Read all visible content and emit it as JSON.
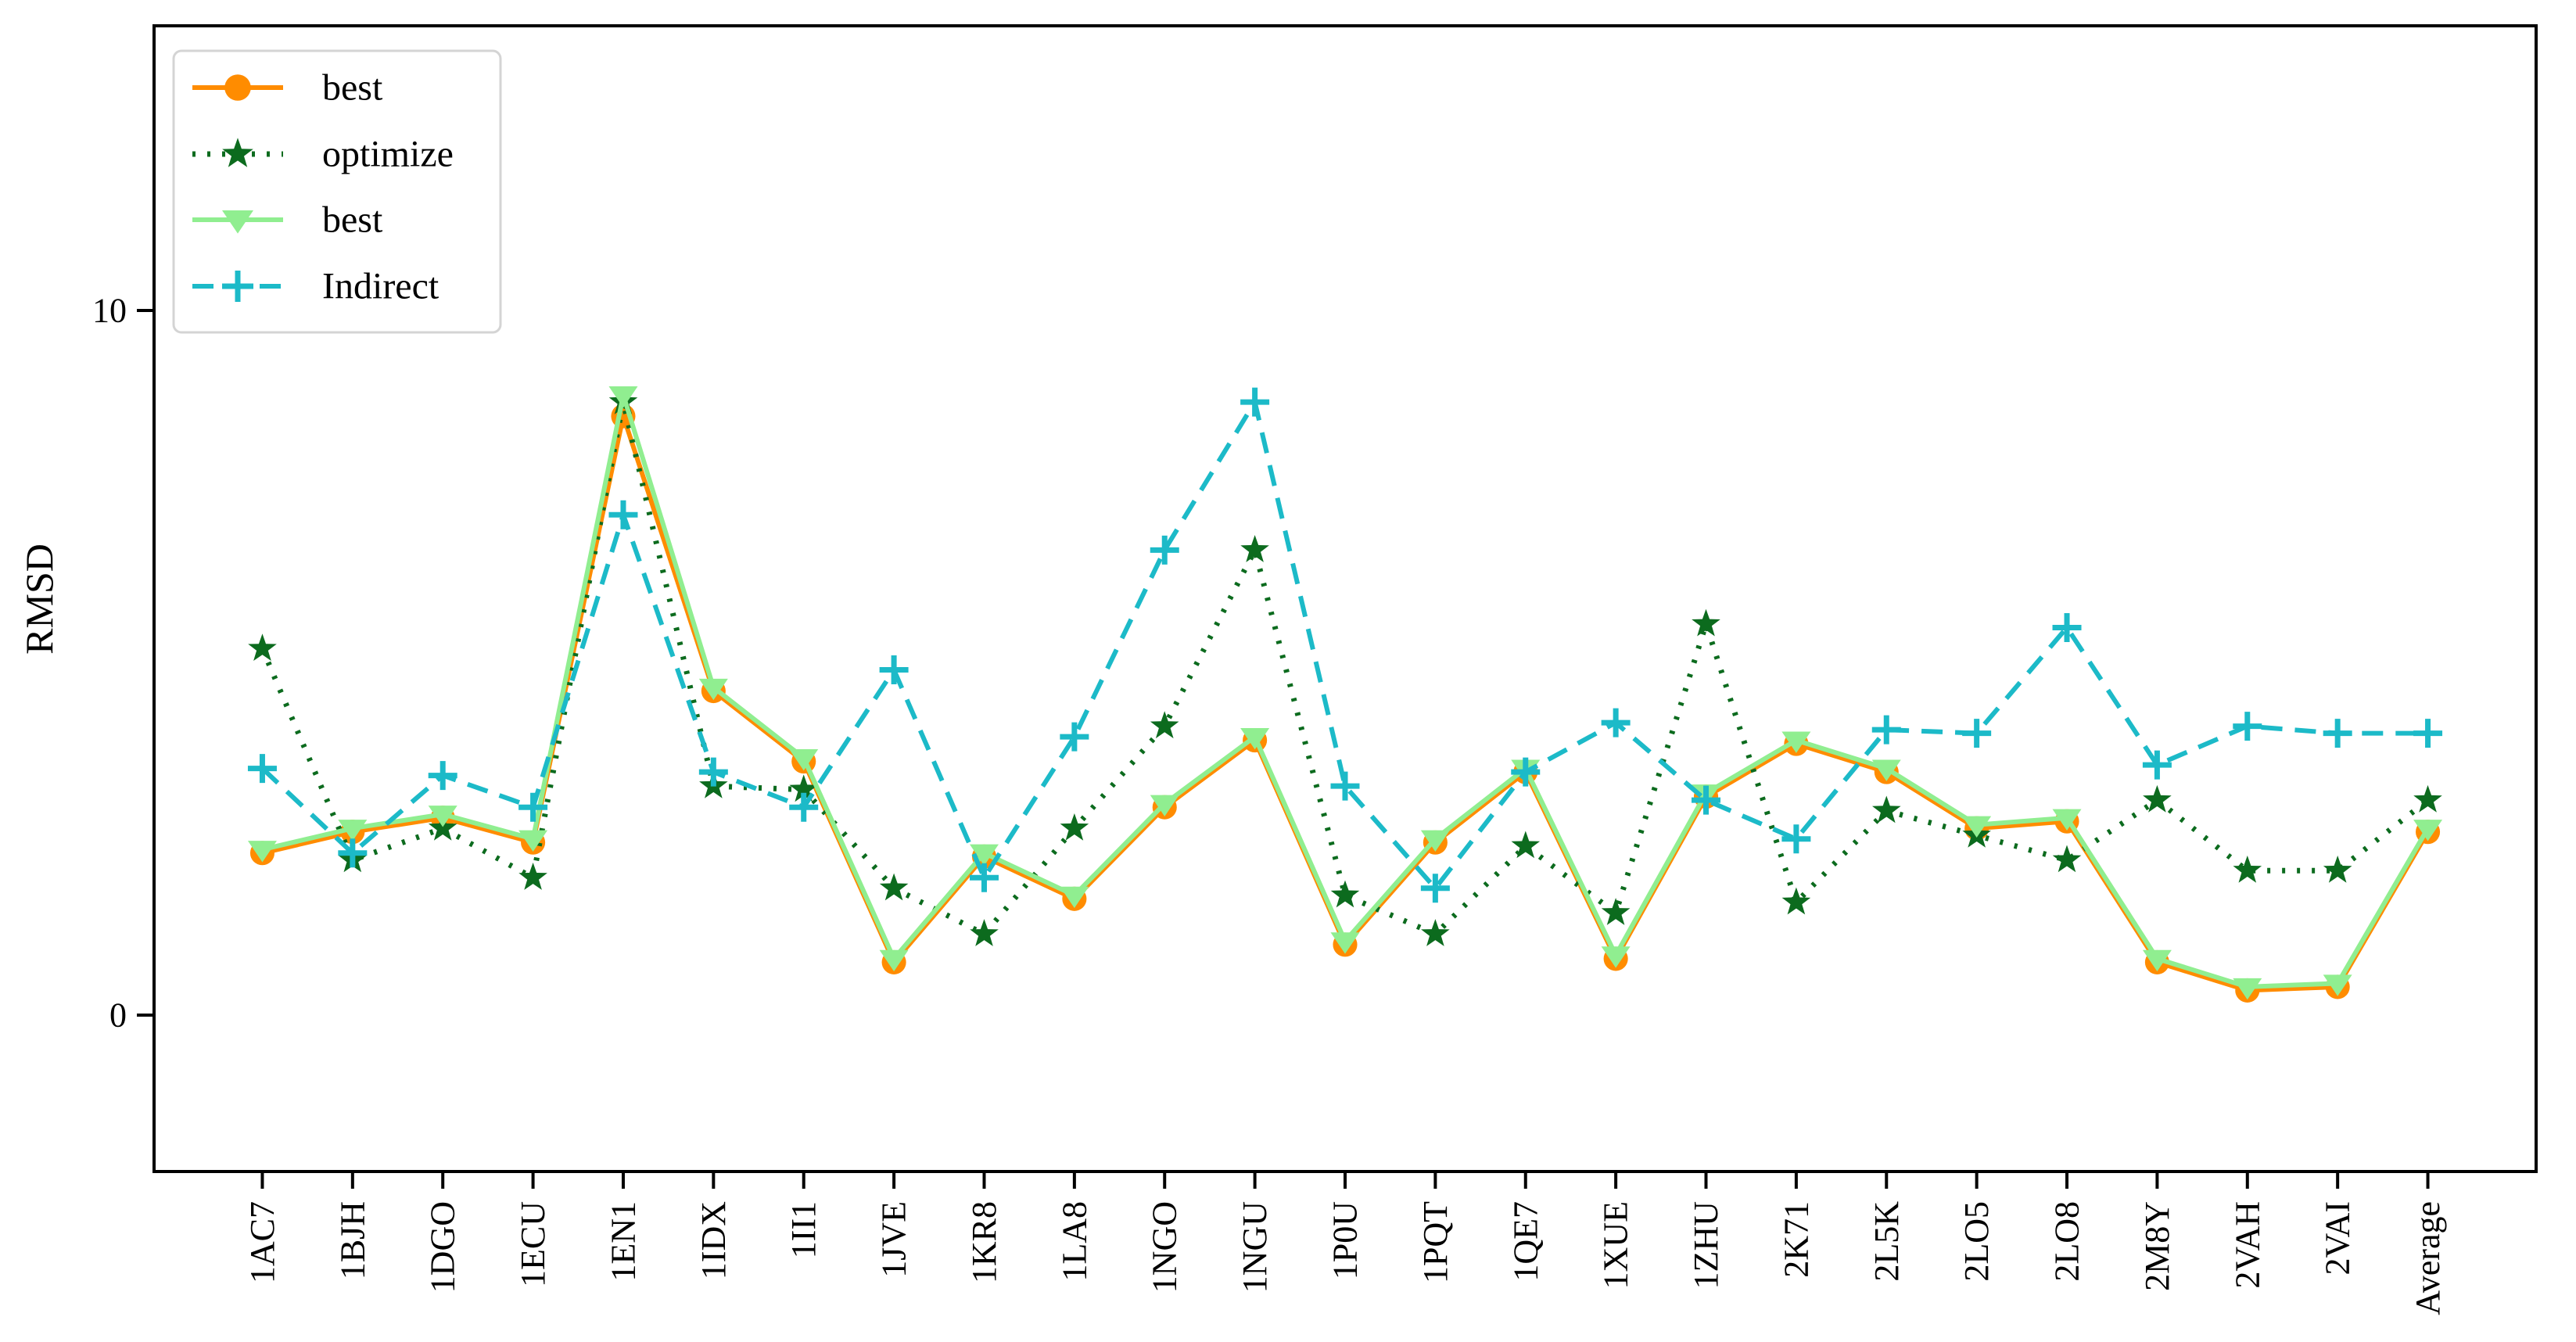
{
  "figure": {
    "background": "#ffffff",
    "border_color": "#000000"
  },
  "chart_data": {
    "type": "line",
    "title": "",
    "xlabel": "",
    "ylabel": "RMSD",
    "yticks": [
      0,
      10
    ],
    "ylim": [
      -2.22,
      14.04
    ],
    "xlim": [
      -1.2,
      25.2
    ],
    "grid": false,
    "legend_position": "upper left",
    "categories": [
      "1AC7",
      "1BJH",
      "1DGO",
      "1ECU",
      "1EN1",
      "1IDX",
      "1II1",
      "1JVE",
      "1KR8",
      "1LA8",
      "1NGO",
      "1NGU",
      "1P0U",
      "1PQT",
      "1QE7",
      "1XUE",
      "1ZHU",
      "2K71",
      "2L5K",
      "2LO5",
      "2LO8",
      "2M8Y",
      "2VAH",
      "2VAI",
      "Average"
    ],
    "series": [
      {
        "name": "best",
        "color": "#ff8c00",
        "marker": "circle",
        "linestyle": "solid",
        "values": [
          2.3,
          2.6,
          2.8,
          2.45,
          8.5,
          4.6,
          3.6,
          0.75,
          2.25,
          1.65,
          2.95,
          3.9,
          1.0,
          2.45,
          3.45,
          0.8,
          3.1,
          3.85,
          3.45,
          2.65,
          2.75,
          0.75,
          0.35,
          0.4,
          2.6
        ]
      },
      {
        "name": "optimize",
        "color": "#0c6b1e",
        "marker": "star",
        "linestyle": "dotted",
        "values": [
          5.2,
          2.2,
          2.65,
          1.95,
          8.7,
          3.25,
          3.2,
          1.8,
          1.15,
          2.65,
          4.1,
          6.6,
          1.7,
          1.15,
          2.4,
          1.45,
          5.55,
          1.6,
          2.9,
          2.55,
          2.2,
          3.05,
          2.05,
          2.05,
          3.05
        ]
      },
      {
        "name": "best",
        "color": "#90ee90",
        "marker": "triangle-down",
        "linestyle": "solid",
        "values": [
          2.35,
          2.65,
          2.85,
          2.5,
          8.8,
          4.65,
          3.65,
          0.8,
          2.3,
          1.7,
          3.0,
          3.95,
          1.05,
          2.5,
          3.5,
          0.85,
          3.15,
          3.9,
          3.5,
          2.7,
          2.8,
          0.8,
          0.4,
          0.45,
          2.65
        ]
      },
      {
        "name": "Indirect",
        "color": "#1cbac8",
        "marker": "plus",
        "linestyle": "dashed",
        "values": [
          3.5,
          2.3,
          3.4,
          2.95,
          7.1,
          3.45,
          2.95,
          4.9,
          1.95,
          3.95,
          6.6,
          8.7,
          3.25,
          1.8,
          3.45,
          4.15,
          3.05,
          2.5,
          4.05,
          4.0,
          5.5,
          3.55,
          4.1,
          4.0,
          4.0
        ]
      }
    ],
    "legend": {
      "labels": [
        "best",
        "optimize",
        "best",
        "Indirect"
      ],
      "border_color": "#d4d4d4",
      "background": "#ffffff"
    }
  }
}
